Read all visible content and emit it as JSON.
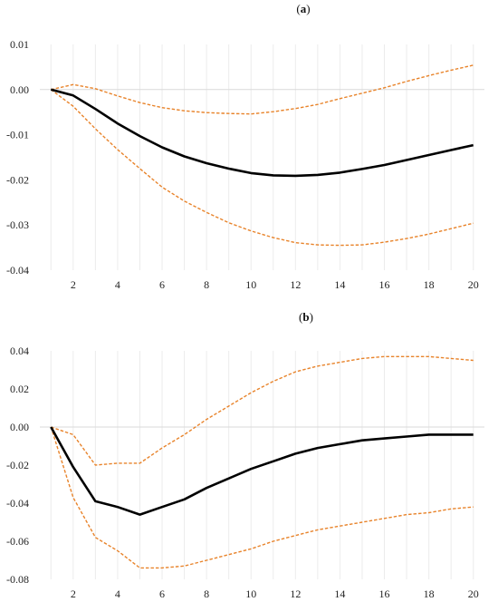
{
  "chart_data": [
    {
      "type": "line",
      "panel_label": {
        "open": "(",
        "letter": "a",
        "close": ")"
      },
      "x": [
        1,
        2,
        3,
        4,
        5,
        6,
        7,
        8,
        9,
        10,
        11,
        12,
        13,
        14,
        15,
        16,
        17,
        18,
        19,
        20
      ],
      "xticks": [
        2,
        4,
        6,
        8,
        10,
        12,
        14,
        16,
        18,
        20
      ],
      "yticks": [
        "0.01",
        "0.00",
        "-0.01",
        "-0.02",
        "-0.03",
        "-0.04"
      ],
      "ylim": [
        -0.04,
        0.01
      ],
      "xlim": [
        0.5,
        20.5
      ],
      "grid": true,
      "series": [
        {
          "role": "response",
          "color": "#000000",
          "style": "solid",
          "values": [
            0.0,
            -0.0013,
            -0.0043,
            -0.0075,
            -0.0103,
            -0.0128,
            -0.0148,
            -0.0163,
            -0.0175,
            -0.0185,
            -0.019,
            -0.0191,
            -0.0189,
            -0.0184,
            -0.0176,
            -0.0167,
            -0.0156,
            -0.0145,
            -0.0134,
            -0.0123
          ]
        },
        {
          "role": "upper-band",
          "color": "#e8832a",
          "style": "dashed",
          "values": [
            0.0,
            0.0011,
            0.0002,
            -0.0014,
            -0.0029,
            -0.004,
            -0.0047,
            -0.0051,
            -0.0053,
            -0.0054,
            -0.0049,
            -0.0042,
            -0.0033,
            -0.002,
            -0.0008,
            0.0004,
            0.0018,
            0.0031,
            0.0043,
            0.0054
          ]
        },
        {
          "role": "lower-band",
          "color": "#e8832a",
          "style": "dashed",
          "values": [
            0.0,
            -0.0037,
            -0.0087,
            -0.0133,
            -0.0175,
            -0.0216,
            -0.0247,
            -0.0272,
            -0.0295,
            -0.0313,
            -0.0328,
            -0.0339,
            -0.0344,
            -0.0345,
            -0.0344,
            -0.0338,
            -0.033,
            -0.032,
            -0.0308,
            -0.0296
          ]
        }
      ]
    },
    {
      "type": "line",
      "panel_label": {
        "open": "(",
        "letter": "b",
        "close": ")"
      },
      "x": [
        1,
        2,
        3,
        4,
        5,
        6,
        7,
        8,
        9,
        10,
        11,
        12,
        13,
        14,
        15,
        16,
        17,
        18,
        19,
        20
      ],
      "xticks": [
        2,
        4,
        6,
        8,
        10,
        12,
        14,
        16,
        18,
        20
      ],
      "yticks": [
        "0.04",
        "0.02",
        "0.00",
        "-0.02",
        "-0.04",
        "-0.06",
        "-0.08"
      ],
      "ylim": [
        -0.08,
        0.04
      ],
      "xlim": [
        0.5,
        20.5
      ],
      "grid": true,
      "series": [
        {
          "role": "response",
          "color": "#000000",
          "style": "solid",
          "values": [
            0.0,
            -0.021,
            -0.039,
            -0.042,
            -0.046,
            -0.042,
            -0.038,
            -0.032,
            -0.027,
            -0.022,
            -0.018,
            -0.014,
            -0.011,
            -0.009,
            -0.007,
            -0.006,
            -0.005,
            -0.004,
            -0.004,
            -0.004
          ]
        },
        {
          "role": "upper-band",
          "color": "#e8832a",
          "style": "dashed",
          "values": [
            0.0,
            -0.004,
            -0.02,
            -0.019,
            -0.019,
            -0.011,
            -0.004,
            0.004,
            0.011,
            0.018,
            0.024,
            0.029,
            0.032,
            0.034,
            0.036,
            0.037,
            0.037,
            0.037,
            0.036,
            0.035
          ]
        },
        {
          "role": "lower-band",
          "color": "#e8832a",
          "style": "dashed",
          "values": [
            0.0,
            -0.037,
            -0.058,
            -0.065,
            -0.074,
            -0.074,
            -0.073,
            -0.07,
            -0.067,
            -0.064,
            -0.06,
            -0.057,
            -0.054,
            -0.052,
            -0.05,
            -0.048,
            -0.046,
            -0.045,
            -0.043,
            -0.042
          ]
        }
      ]
    }
  ]
}
